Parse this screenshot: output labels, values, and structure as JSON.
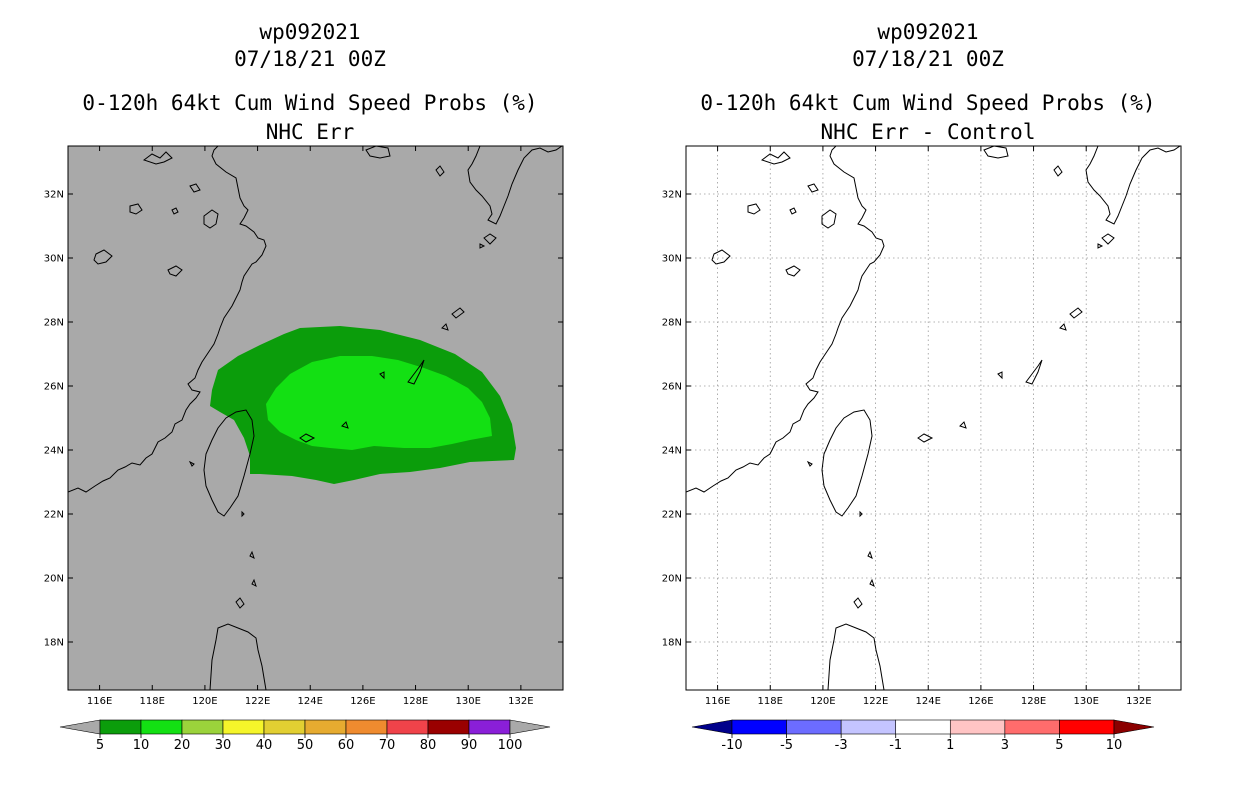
{
  "colors": {
    "land_gray": "#a9a9a9",
    "frame": "#000000",
    "grid": "#9a9a9a",
    "coast": "#000000",
    "prob_5_10": "#0a9a0a",
    "prob_10_20": "#10d610"
  },
  "chart_data": [
    {
      "type": "heatmap",
      "name": "left-panel",
      "title": [
        "wp092021",
        "07/18/21 00Z",
        "0-120h 64kt Cum Wind Speed Probs (%)",
        "NHC Err"
      ],
      "xlabel": "",
      "ylabel": "",
      "x_ticks": [
        "116E",
        "118E",
        "120E",
        "122E",
        "124E",
        "126E",
        "128E",
        "130E",
        "132E"
      ],
      "y_ticks": [
        "18N",
        "20N",
        "22N",
        "24N",
        "26N",
        "28N",
        "30N",
        "32N"
      ],
      "xlim": [
        114.8,
        133.6
      ],
      "ylim": [
        16.5,
        33.5
      ],
      "background": "gray",
      "grid": false,
      "colorbar": {
        "levels": [
          "5",
          "10",
          "20",
          "30",
          "40",
          "50",
          "60",
          "70",
          "80",
          "90",
          "100"
        ],
        "colors": [
          "#0b9d0b",
          "#13e013",
          "#9bd33b",
          "#f5f52a",
          "#e2cf32",
          "#e6ab30",
          "#ef8b2f",
          "#f0434a",
          "#9a0000",
          "#8a1fd8"
        ],
        "extensions": [
          "#a9a9a9",
          "#a9a9a9"
        ]
      },
      "contours": [
        {
          "level": 5,
          "label": "5-10",
          "color": "#0b9d0b"
        },
        {
          "level": 10,
          "label": "10-20",
          "color": "#13e013"
        }
      ]
    },
    {
      "type": "heatmap",
      "name": "right-panel",
      "title": [
        "wp092021",
        "07/18/21 00Z",
        "0-120h 64kt Cum Wind Speed Probs (%)",
        "NHC Err - Control"
      ],
      "xlabel": "",
      "ylabel": "",
      "x_ticks": [
        "116E",
        "118E",
        "120E",
        "122E",
        "124E",
        "126E",
        "128E",
        "130E",
        "132E"
      ],
      "y_ticks": [
        "18N",
        "20N",
        "22N",
        "24N",
        "26N",
        "28N",
        "30N",
        "32N"
      ],
      "xlim": [
        114.8,
        133.6
      ],
      "ylim": [
        16.5,
        33.5
      ],
      "background": "white",
      "grid": true,
      "colorbar": {
        "levels": [
          "-10",
          "-5",
          "-3",
          "-1",
          "1",
          "3",
          "5",
          "10"
        ],
        "colors": [
          "#0000ff",
          "#6c6cff",
          "#c4c4ff",
          "#ffffff",
          "#ffc4c4",
          "#ff6c6c",
          "#ff0000"
        ],
        "extensions": [
          "#00008b",
          "#8b0000"
        ]
      },
      "contours": []
    }
  ]
}
